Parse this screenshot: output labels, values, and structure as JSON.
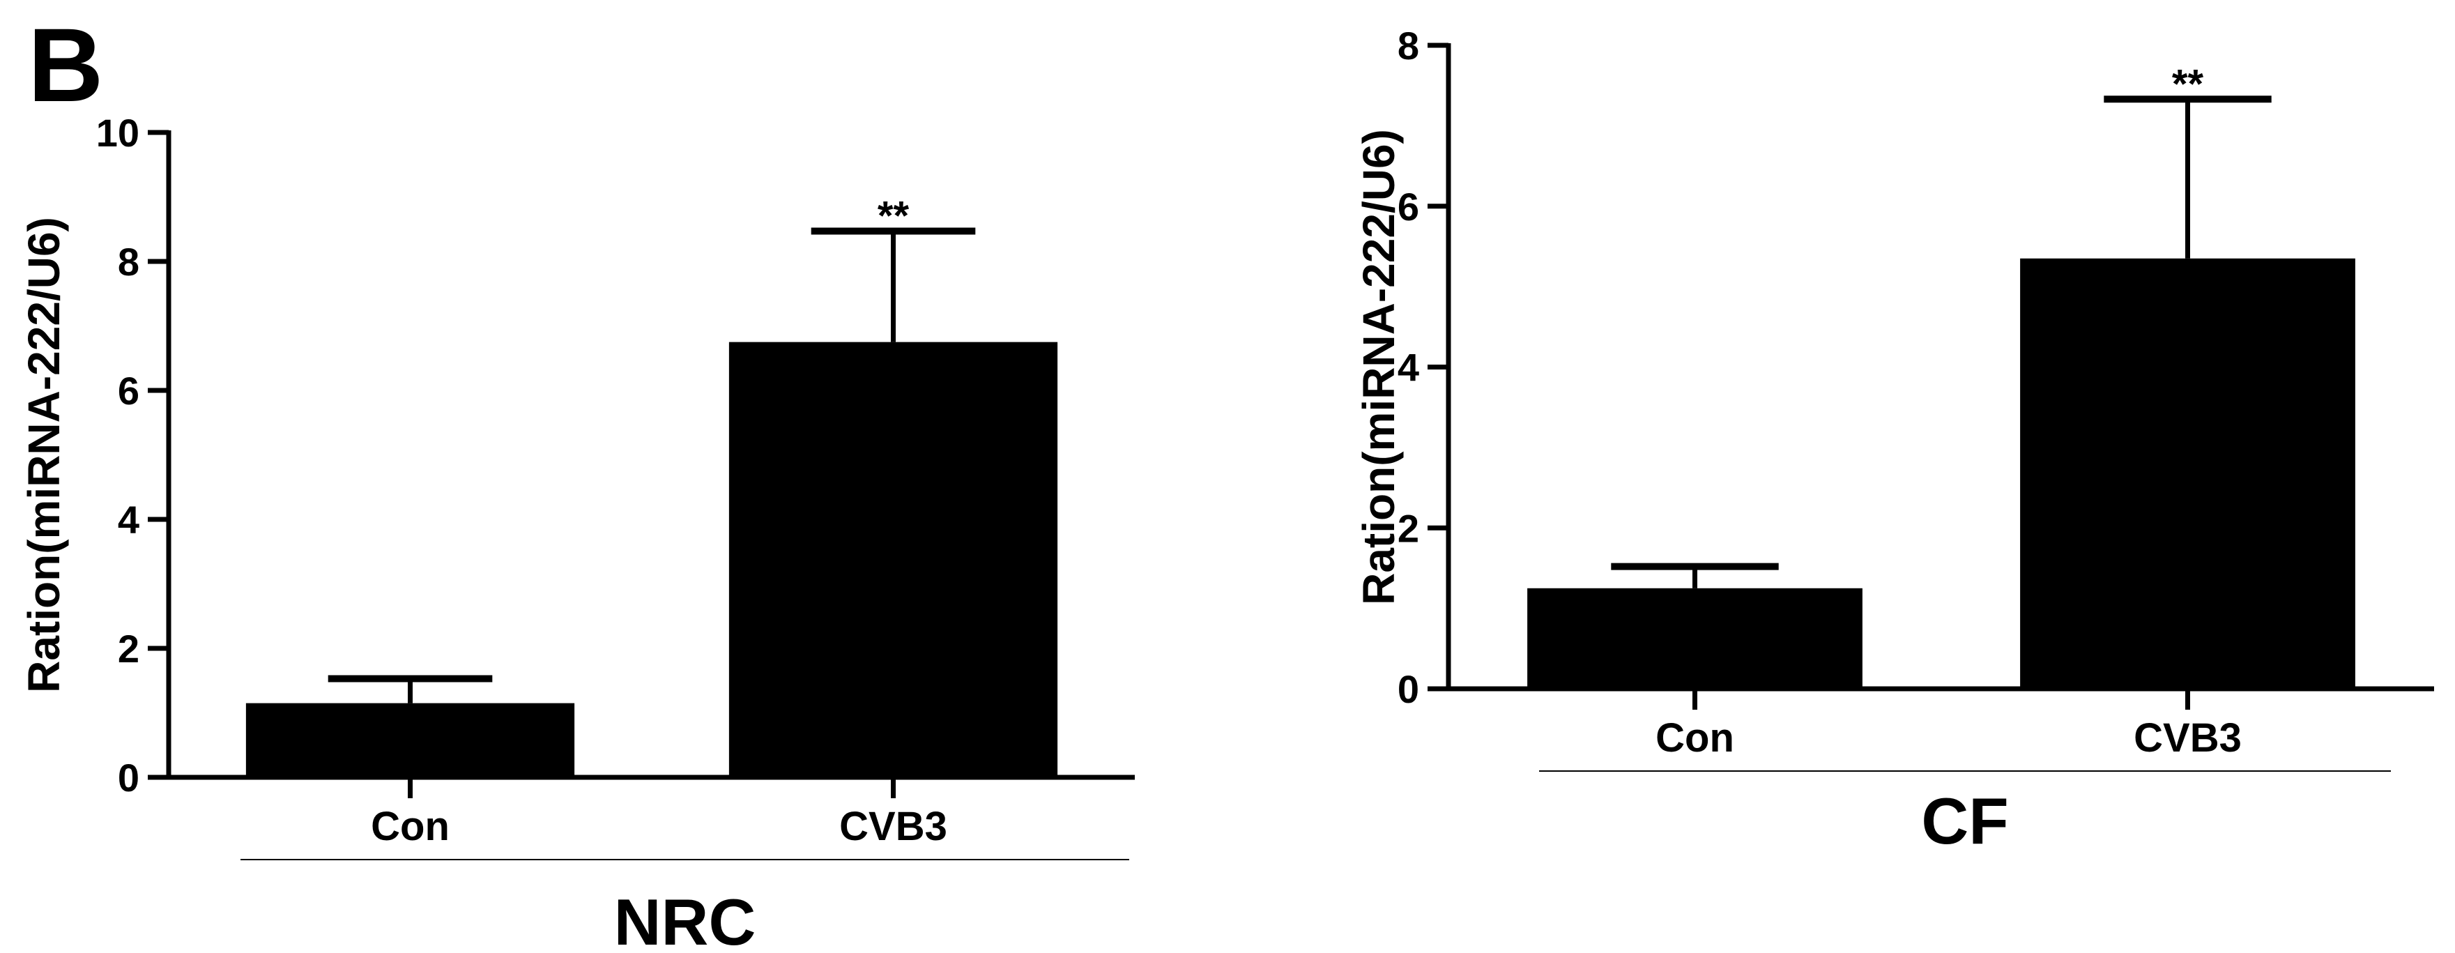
{
  "panel_label": "B",
  "chart_data": [
    {
      "type": "bar",
      "ylabel": "Ration(miRNA-222/U6)",
      "group_label": "NRC",
      "categories": [
        "Con",
        "CVB3"
      ],
      "values": [
        1.15,
        6.75
      ],
      "errors": [
        0.38,
        1.72
      ],
      "significance": [
        "",
        "**"
      ],
      "ylim": [
        0,
        10
      ],
      "yticks": [
        0,
        2,
        4,
        6,
        8,
        10
      ],
      "bar_color": "#000000",
      "grid": false
    },
    {
      "type": "bar",
      "ylabel": "Ration(miRNA-222/U6)",
      "group_label": "CF",
      "categories": [
        "Con",
        "CVB3"
      ],
      "values": [
        1.25,
        5.35
      ],
      "errors": [
        0.27,
        1.98
      ],
      "significance": [
        "",
        "**"
      ],
      "ylim": [
        0,
        8
      ],
      "yticks": [
        0,
        2,
        4,
        6,
        8
      ],
      "bar_color": "#000000",
      "grid": false
    }
  ]
}
